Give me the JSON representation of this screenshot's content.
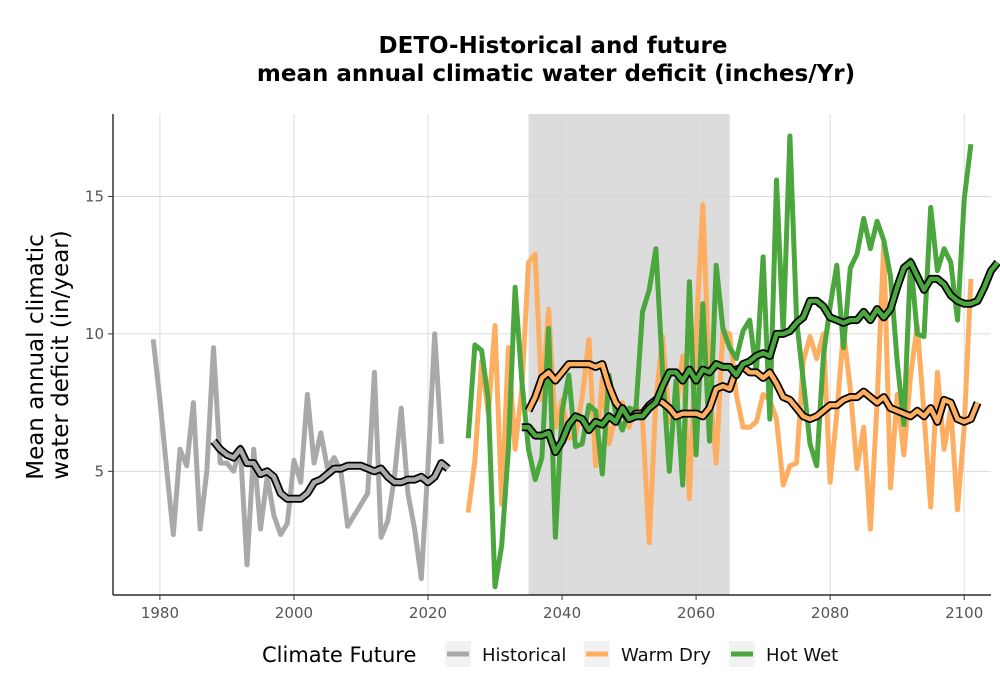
{
  "chart_data": {
    "type": "line",
    "title": [
      "DETO-Historical and future",
      "mean annual climatic water deficit (inches/Yr)"
    ],
    "xlabel": "",
    "ylabel": [
      "Mean annual climatic",
      "water deficit (in/year)"
    ],
    "xlim": [
      1973,
      2104
    ],
    "ylim": [
      0.5,
      18
    ],
    "x_ticks": [
      1980,
      2000,
      2020,
      2040,
      2060,
      2080,
      2100
    ],
    "y_ticks": [
      5,
      10,
      15
    ],
    "grid": true,
    "shaded_period": [
      2035,
      2065
    ],
    "legend": {
      "title": "Climate Future",
      "position": "bottom",
      "entries": [
        "Historical",
        "Warm Dry",
        "Hot Wet"
      ]
    },
    "series": [
      {
        "name": "Historical",
        "color": "#a9a9a9",
        "start_year": 1979,
        "values": [
          9.8,
          7.6,
          5.1,
          2.7,
          5.8,
          5.2,
          7.5,
          2.9,
          5.0,
          9.5,
          5.3,
          5.3,
          5.0,
          5.9,
          1.6,
          5.8,
          2.9,
          4.8,
          3.4,
          2.7,
          3.1,
          5.4,
          4.6,
          7.8,
          5.3,
          6.4,
          5.1,
          5.5,
          5.0,
          3.0,
          3.4,
          3.8,
          4.2,
          8.6,
          2.6,
          3.2,
          4.8,
          7.3,
          4.2,
          2.9,
          1.1,
          5.2,
          10.0,
          6.0
        ]
      },
      {
        "name": "Historical (running mean)",
        "color": "#a9a9a9",
        "start_year": 1988,
        "values": [
          6.1,
          5.8,
          5.6,
          5.5,
          5.8,
          5.3,
          5.3,
          4.9,
          5.0,
          4.8,
          4.2,
          4.0,
          4.0,
          4.0,
          4.2,
          4.6,
          4.7,
          4.9,
          5.1,
          5.1,
          5.2,
          5.2,
          5.2,
          5.1,
          5.0,
          5.1,
          4.8,
          4.6,
          4.6,
          4.7,
          4.7,
          4.8,
          4.6,
          4.8,
          5.3,
          5.1
        ]
      },
      {
        "name": "Warm Dry",
        "color": "#fdae61",
        "start_year": 2026,
        "values": [
          3.5,
          5.4,
          9.0,
          7.1,
          10.3,
          3.8,
          9.5,
          5.8,
          8.0,
          12.6,
          12.9,
          7.6,
          10.9,
          6.6,
          7.6,
          6.2,
          6.3,
          7.7,
          9.8,
          5.2,
          8.4,
          6.0,
          7.0,
          7.5,
          6.6,
          7.4,
          6.9,
          2.4,
          7.6,
          9.9,
          6.8,
          7.2,
          9.2,
          4.0,
          10.0,
          14.7,
          8.2,
          5.3,
          10.1,
          10.0,
          7.8,
          6.6,
          6.6,
          6.8,
          7.8,
          7.6,
          6.9,
          4.5,
          5.2,
          5.3,
          9.0,
          9.9,
          9.1,
          10.0,
          4.6,
          7.1,
          10.1,
          8.0,
          5.1,
          6.6,
          2.9,
          7.5,
          13.3,
          4.4,
          7.8,
          5.6,
          8.5,
          10.3,
          7.1,
          3.7,
          8.6,
          5.8,
          7.3,
          3.6,
          6.6,
          12.0
        ]
      },
      {
        "name": "Warm Dry (running mean)",
        "color": "#fdae61",
        "start_year": 2035,
        "values": [
          7.2,
          7.7,
          8.4,
          8.6,
          8.3,
          8.6,
          8.9,
          8.9,
          8.9,
          8.9,
          8.8,
          8.9,
          8.1,
          7.5,
          7.2,
          6.9,
          7.1,
          7.1,
          7.4,
          7.6,
          7.5,
          7.3,
          7.0,
          7.1,
          7.1,
          7.1,
          7.0,
          7.3,
          8.0,
          8.1,
          8.0,
          8.7,
          8.8,
          8.6,
          8.6,
          8.4,
          8.6,
          8.2,
          7.7,
          7.6,
          7.3,
          7.0,
          6.9,
          7.0,
          7.2,
          7.4,
          7.4,
          7.6,
          7.7,
          7.7,
          7.9,
          7.7,
          7.5,
          7.7,
          7.3,
          7.2,
          7.1,
          7.0,
          7.2,
          7.0,
          7.3,
          6.8,
          7.6,
          7.5,
          6.9,
          6.8,
          6.9,
          7.5
        ]
      },
      {
        "name": "Hot Wet",
        "color": "#4aa63d",
        "start_year": 2026,
        "values": [
          6.2,
          9.6,
          9.4,
          7.6,
          0.8,
          2.3,
          5.8,
          11.7,
          8.3,
          5.8,
          4.7,
          5.5,
          10.2,
          2.6,
          7.2,
          8.5,
          5.9,
          6.0,
          7.4,
          7.2,
          4.9,
          8.5,
          7.1,
          6.5,
          7.3,
          7.2,
          10.8,
          11.6,
          13.1,
          8.6,
          5.0,
          8.3,
          4.5,
          11.9,
          5.6,
          11.1,
          6.1,
          12.5,
          10.2,
          9.5,
          9.1,
          10.1,
          10.5,
          8.6,
          12.8,
          6.9,
          15.6,
          10.0,
          17.2,
          10.5,
          8.3,
          6.0,
          5.2,
          9.2,
          11.0,
          12.5,
          9.5,
          12.4,
          12.9,
          14.2,
          13.1,
          14.1,
          13.4,
          12.1,
          9.0,
          6.7,
          12.7,
          10.0,
          9.9,
          14.6,
          12.3,
          13.1,
          12.6,
          10.5,
          14.9,
          16.9
        ]
      },
      {
        "name": "Hot Wet (running mean)",
        "color": "#4aa63d",
        "start_year": 2034,
        "values": [
          6.6,
          6.6,
          6.3,
          6.3,
          6.4,
          5.7,
          6.1,
          6.7,
          7.0,
          6.9,
          6.5,
          6.8,
          6.7,
          7.0,
          6.8,
          7.3,
          6.9,
          7.0,
          7.0,
          7.3,
          7.5,
          8.1,
          8.6,
          8.6,
          8.3,
          8.7,
          8.3,
          8.7,
          8.6,
          8.9,
          8.8,
          8.8,
          8.5,
          8.9,
          9.0,
          9.2,
          9.3,
          9.2,
          10.0,
          10.0,
          10.1,
          10.4,
          10.6,
          11.2,
          11.2,
          11.0,
          10.6,
          10.5,
          10.4,
          10.5,
          10.5,
          10.8,
          10.5,
          10.9,
          10.6,
          10.9,
          11.7,
          12.4,
          12.6,
          12.1,
          11.6,
          12.0,
          12.0,
          11.8,
          11.4,
          11.2,
          11.1,
          11.1,
          11.2,
          11.7,
          12.3,
          12.6
        ]
      }
    ]
  }
}
